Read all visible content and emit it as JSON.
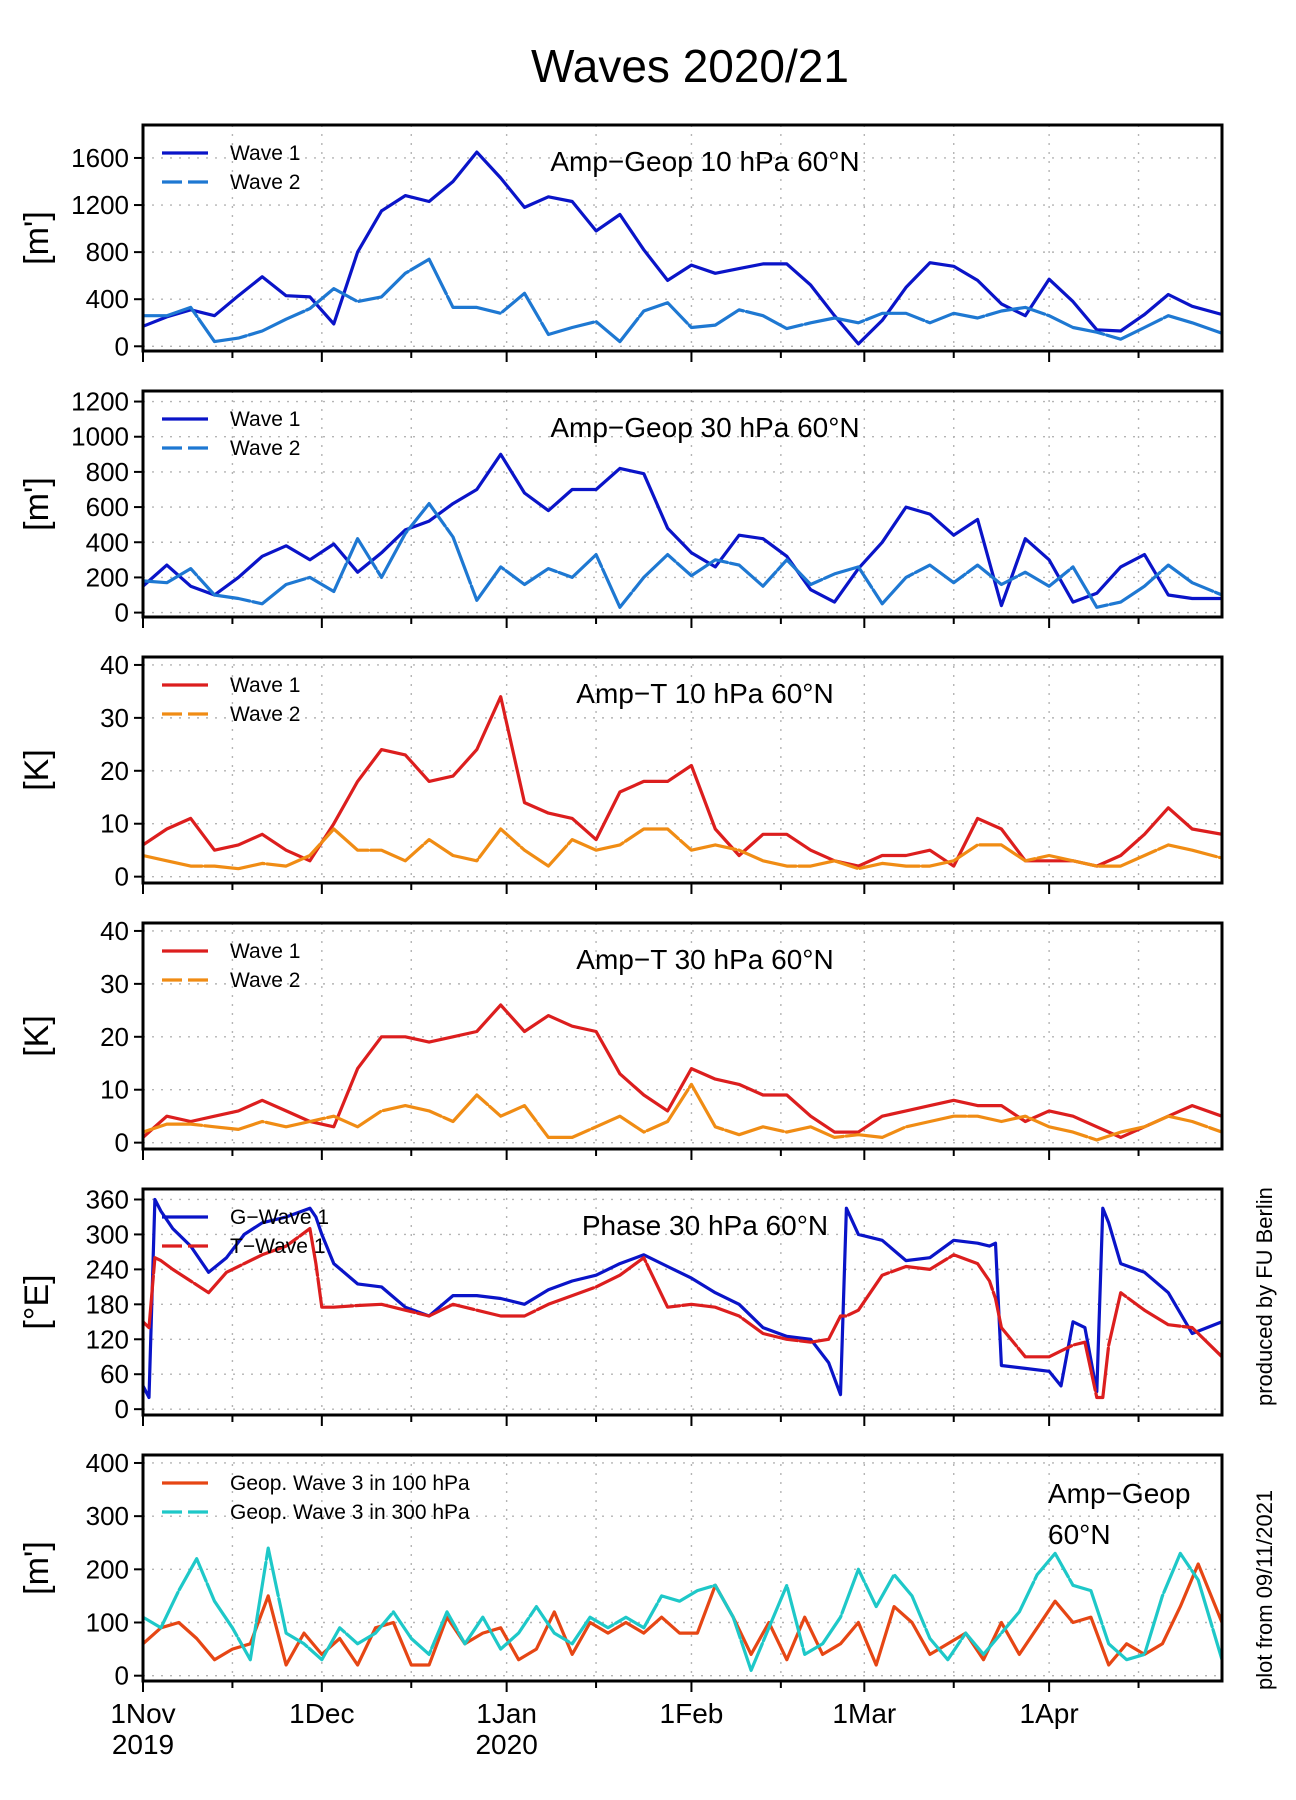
{
  "figure": {
    "title": "Waves 2020/21",
    "credit": "produced by FU Berlin",
    "plot_date": "plot from  09/11/2021"
  },
  "x_axis": {
    "start": "2019-11-01",
    "end": "2020-04-30",
    "ticks": [
      {
        "day": 0,
        "line1": "1Nov",
        "line2": "2019"
      },
      {
        "day": 30,
        "line1": "1Dec",
        "line2": ""
      },
      {
        "day": 61,
        "line1": "1Jan",
        "line2": "2020"
      },
      {
        "day": 92,
        "line1": "1Feb",
        "line2": ""
      },
      {
        "day": 121,
        "line1": "1Mar",
        "line2": ""
      },
      {
        "day": 152,
        "line1": "1Apr",
        "line2": ""
      }
    ],
    "minor_tick_days": [
      15,
      45,
      76,
      107,
      136,
      167
    ]
  },
  "chart_data": [
    {
      "type": "line",
      "title": "Amp−Geop 10 hPa 60°N",
      "ylabel": "[m']",
      "ylim": [
        -40,
        1880
      ],
      "yticks": [
        0,
        400,
        800,
        1200,
        1600
      ],
      "x": [
        0,
        4,
        8,
        12,
        16,
        20,
        24,
        28,
        32,
        36,
        40,
        44,
        48,
        52,
        56,
        60,
        64,
        68,
        72,
        76,
        80,
        84,
        88,
        92,
        96,
        100,
        104,
        108,
        112,
        116,
        120,
        124,
        128,
        132,
        136,
        140,
        144,
        148,
        152,
        156,
        160,
        164,
        168,
        172,
        176,
        181
      ],
      "series": [
        {
          "name": "Wave 1",
          "color": "#0a14c8",
          "dash": "solid",
          "values": [
            170,
            250,
            310,
            260,
            430,
            590,
            430,
            420,
            190,
            800,
            1150,
            1280,
            1230,
            1400,
            1650,
            1430,
            1180,
            1270,
            1230,
            980,
            1120,
            820,
            560,
            690,
            620,
            660,
            700,
            700,
            520,
            260,
            20,
            220,
            500,
            710,
            680,
            560,
            360,
            260,
            570,
            380,
            140,
            130,
            270,
            440,
            340,
            270
          ]
        },
        {
          "name": "Wave 2",
          "color": "#1e78d2",
          "dash": "dash",
          "values": [
            260,
            260,
            330,
            40,
            70,
            130,
            230,
            320,
            490,
            380,
            420,
            620,
            740,
            330,
            330,
            280,
            450,
            100,
            160,
            210,
            40,
            300,
            370,
            160,
            180,
            310,
            260,
            150,
            200,
            240,
            200,
            280,
            280,
            200,
            280,
            240,
            300,
            330,
            260,
            160,
            120,
            60,
            160,
            260,
            200,
            110
          ]
        }
      ]
    },
    {
      "type": "line",
      "title": "Amp−Geop 30 hPa 60°N",
      "ylabel": "[m']",
      "ylim": [
        -25,
        1260
      ],
      "yticks": [
        0,
        200,
        400,
        600,
        800,
        1000,
        1200
      ],
      "x": [
        0,
        4,
        8,
        12,
        16,
        20,
        24,
        28,
        32,
        36,
        40,
        44,
        48,
        52,
        56,
        60,
        64,
        68,
        72,
        76,
        80,
        84,
        88,
        92,
        96,
        100,
        104,
        108,
        112,
        116,
        120,
        124,
        128,
        132,
        136,
        140,
        144,
        148,
        152,
        156,
        160,
        164,
        168,
        172,
        176,
        181
      ],
      "series": [
        {
          "name": "Wave 1",
          "color": "#0a14c8",
          "dash": "solid",
          "values": [
            150,
            270,
            150,
            100,
            200,
            320,
            380,
            300,
            390,
            230,
            340,
            470,
            520,
            620,
            700,
            900,
            680,
            580,
            700,
            700,
            820,
            790,
            480,
            340,
            260,
            440,
            420,
            320,
            130,
            60,
            250,
            400,
            600,
            560,
            440,
            530,
            40,
            420,
            300,
            60,
            110,
            260,
            330,
            100,
            80,
            80
          ]
        },
        {
          "name": "Wave 2",
          "color": "#1e78d2",
          "dash": "dash",
          "values": [
            180,
            170,
            250,
            100,
            80,
            50,
            160,
            200,
            120,
            420,
            200,
            450,
            620,
            430,
            70,
            260,
            160,
            250,
            200,
            330,
            30,
            200,
            330,
            210,
            300,
            270,
            150,
            300,
            160,
            220,
            260,
            50,
            200,
            270,
            170,
            270,
            160,
            230,
            150,
            260,
            30,
            60,
            150,
            270,
            170,
            100
          ]
        }
      ]
    },
    {
      "type": "line",
      "title": "Amp−T 10 hPa 60°N",
      "ylabel": "[K]",
      "ylim": [
        -1.2,
        41.5
      ],
      "yticks": [
        0,
        10,
        20,
        30,
        40
      ],
      "x": [
        0,
        4,
        8,
        12,
        16,
        20,
        24,
        28,
        32,
        36,
        40,
        44,
        48,
        52,
        56,
        60,
        64,
        68,
        72,
        76,
        80,
        84,
        88,
        92,
        96,
        100,
        104,
        108,
        112,
        116,
        120,
        124,
        128,
        132,
        136,
        140,
        144,
        148,
        152,
        156,
        160,
        164,
        168,
        172,
        176,
        181
      ],
      "series": [
        {
          "name": "Wave 1",
          "color": "#dc1e1e",
          "dash": "solid",
          "values": [
            6,
            9,
            11,
            5,
            6,
            8,
            5,
            3,
            10,
            18,
            24,
            23,
            18,
            19,
            24,
            34,
            14,
            12,
            11,
            7,
            16,
            18,
            18,
            21,
            9,
            4,
            8,
            8,
            5,
            3,
            2,
            4,
            4,
            5,
            2,
            11,
            9,
            3,
            3,
            3,
            2,
            4,
            8,
            13,
            9,
            8
          ]
        },
        {
          "name": "Wave 2",
          "color": "#f08c14",
          "dash": "dash",
          "values": [
            4,
            3,
            2,
            2,
            1.5,
            2.5,
            2,
            4,
            9,
            5,
            5,
            3,
            7,
            4,
            3,
            9,
            5,
            2,
            7,
            5,
            6,
            9,
            9,
            5,
            6,
            5,
            3,
            2,
            2,
            3,
            1.5,
            2.5,
            2,
            2,
            3,
            6,
            6,
            3,
            4,
            3,
            2,
            2,
            4,
            6,
            5,
            3.5
          ]
        }
      ]
    },
    {
      "type": "line",
      "title": "Amp−T 30 hPa 60°N",
      "ylabel": "[K]",
      "ylim": [
        -1.2,
        41.5
      ],
      "yticks": [
        0,
        10,
        20,
        30,
        40
      ],
      "x": [
        0,
        4,
        8,
        12,
        16,
        20,
        24,
        28,
        32,
        36,
        40,
        44,
        48,
        52,
        56,
        60,
        64,
        68,
        72,
        76,
        80,
        84,
        88,
        92,
        96,
        100,
        104,
        108,
        112,
        116,
        120,
        124,
        128,
        132,
        136,
        140,
        144,
        148,
        152,
        156,
        160,
        164,
        168,
        172,
        176,
        181
      ],
      "series": [
        {
          "name": "Wave 1",
          "color": "#dc1e1e",
          "dash": "solid",
          "values": [
            1,
            5,
            4,
            5,
            6,
            8,
            6,
            4,
            3,
            14,
            20,
            20,
            19,
            20,
            21,
            26,
            21,
            24,
            22,
            21,
            13,
            9,
            6,
            14,
            12,
            11,
            9,
            9,
            5,
            2,
            2,
            5,
            6,
            7,
            8,
            7,
            7,
            4,
            6,
            5,
            3,
            1,
            3,
            5,
            7,
            5
          ]
        },
        {
          "name": "Wave 2",
          "color": "#f08c14",
          "dash": "dash",
          "values": [
            2,
            3.5,
            3.5,
            3,
            2.5,
            4,
            3,
            4,
            5,
            3,
            6,
            7,
            6,
            4,
            9,
            5,
            7,
            1,
            1,
            3,
            5,
            2,
            4,
            11,
            3,
            1.5,
            3,
            2,
            3,
            1,
            1.5,
            1,
            3,
            4,
            5,
            5,
            4,
            5,
            3,
            2,
            0.5,
            2,
            3,
            5,
            4,
            2
          ]
        }
      ]
    },
    {
      "type": "line",
      "title": "Phase 30 hPa 60°N",
      "ylabel": "[°E]",
      "ylim": [
        -10,
        378
      ],
      "yticks": [
        0,
        60,
        120,
        180,
        240,
        300,
        360
      ],
      "x": [
        0,
        1,
        2,
        3,
        5,
        8,
        11,
        14,
        17,
        20,
        24,
        28,
        29,
        30,
        32,
        36,
        40,
        44,
        48,
        52,
        56,
        60,
        64,
        68,
        72,
        76,
        80,
        84,
        88,
        92,
        96,
        100,
        104,
        108,
        112,
        115,
        117,
        118,
        120,
        124,
        128,
        132,
        136,
        140,
        142,
        143,
        144,
        148,
        152,
        154,
        156,
        158,
        160,
        161,
        162,
        164,
        168,
        172,
        176,
        181
      ],
      "series": [
        {
          "name": "G−Wave 1",
          "color": "#0a14c8",
          "dash": "solid",
          "values": [
            40,
            20,
            360,
            340,
            310,
            280,
            235,
            260,
            300,
            320,
            330,
            345,
            330,
            300,
            250,
            215,
            210,
            175,
            160,
            195,
            195,
            190,
            180,
            205,
            220,
            230,
            250,
            265,
            245,
            225,
            200,
            180,
            140,
            125,
            120,
            80,
            25,
            345,
            300,
            290,
            255,
            260,
            290,
            285,
            280,
            285,
            75,
            70,
            65,
            40,
            150,
            140,
            30,
            345,
            320,
            250,
            235,
            200,
            130,
            150
          ]
        },
        {
          "name": "T−Wave 1",
          "color": "#dc1e1e",
          "dash": "dash",
          "values": [
            150,
            140,
            260,
            255,
            240,
            220,
            200,
            235,
            250,
            265,
            280,
            310,
            250,
            175,
            175,
            178,
            180,
            170,
            160,
            180,
            170,
            160,
            160,
            180,
            195,
            210,
            230,
            260,
            175,
            180,
            175,
            160,
            130,
            120,
            115,
            120,
            160,
            160,
            170,
            230,
            245,
            240,
            265,
            250,
            220,
            190,
            140,
            90,
            90,
            100,
            110,
            115,
            20,
            20,
            110,
            200,
            170,
            145,
            140,
            90
          ]
        }
      ]
    },
    {
      "type": "line",
      "title": "Amp−Geop",
      "subtitle": "60°N",
      "ylabel": "[m']",
      "ylim": [
        -10,
        415
      ],
      "yticks": [
        0,
        100,
        200,
        300,
        400
      ],
      "x": [
        0,
        3,
        6,
        9,
        12,
        15,
        18,
        21,
        24,
        27,
        30,
        33,
        36,
        39,
        42,
        45,
        48,
        51,
        54,
        57,
        60,
        63,
        66,
        69,
        72,
        75,
        78,
        81,
        84,
        87,
        90,
        93,
        96,
        99,
        102,
        105,
        108,
        111,
        114,
        117,
        120,
        123,
        126,
        129,
        132,
        135,
        138,
        141,
        144,
        147,
        150,
        153,
        156,
        159,
        162,
        165,
        168,
        171,
        174,
        177,
        181
      ],
      "series": [
        {
          "name": "Geop. Wave 3 in 100 hPa",
          "color": "#e64614",
          "dash": "solid",
          "values": [
            60,
            90,
            100,
            70,
            30,
            50,
            60,
            150,
            20,
            80,
            40,
            70,
            20,
            90,
            100,
            20,
            20,
            110,
            60,
            80,
            90,
            30,
            50,
            120,
            40,
            100,
            80,
            100,
            80,
            110,
            80,
            80,
            170,
            110,
            40,
            100,
            30,
            110,
            40,
            60,
            100,
            20,
            130,
            100,
            40,
            60,
            80,
            30,
            100,
            40,
            90,
            140,
            100,
            110,
            20,
            60,
            40,
            60,
            130,
            210,
            100
          ]
        },
        {
          "name": "Geop. Wave 3 in 300 hPa",
          "color": "#1ec8c8",
          "dash": "dash",
          "values": [
            110,
            90,
            160,
            220,
            140,
            90,
            30,
            240,
            80,
            60,
            30,
            90,
            60,
            80,
            120,
            70,
            40,
            120,
            60,
            110,
            50,
            80,
            130,
            80,
            60,
            110,
            90,
            110,
            90,
            150,
            140,
            160,
            170,
            110,
            10,
            90,
            170,
            40,
            60,
            110,
            200,
            130,
            190,
            150,
            70,
            30,
            80,
            40,
            80,
            120,
            190,
            230,
            170,
            160,
            60,
            30,
            40,
            150,
            230,
            180,
            30
          ]
        }
      ]
    }
  ]
}
